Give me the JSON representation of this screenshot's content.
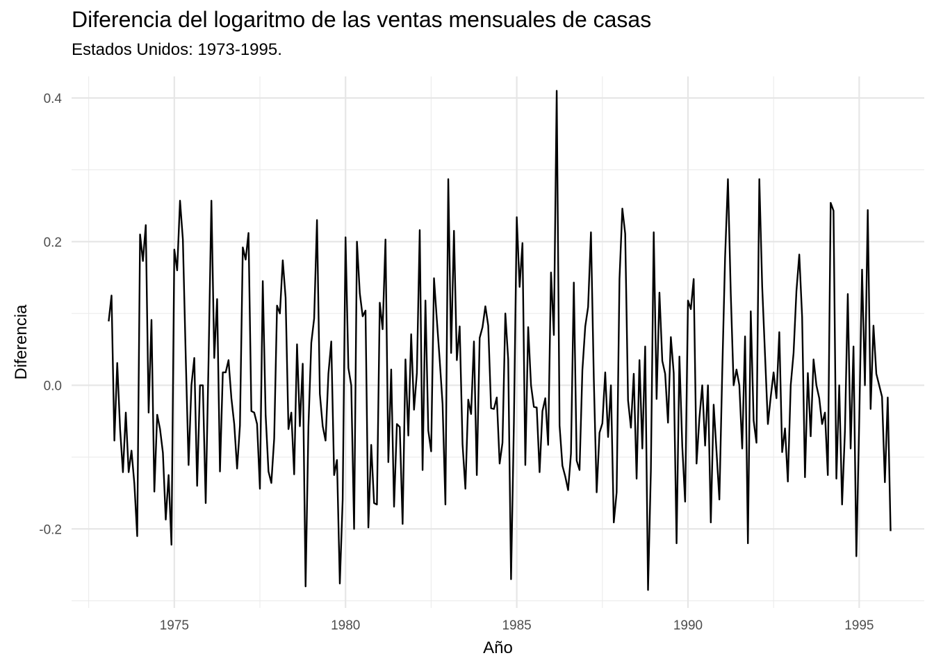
{
  "chart_data": {
    "type": "line",
    "title": "Diferencia del logaritmo de las ventas mensuales de casas",
    "subtitle": "Estados Unidos: 1973-1995.",
    "xlabel": "Año",
    "ylabel": "Diferencia",
    "xlim": [
      1972.0,
      1996.9
    ],
    "ylim": [
      -0.31,
      0.43
    ],
    "x_ticks": [
      1975,
      1980,
      1985,
      1990,
      1995
    ],
    "x_tick_labels": [
      "1975",
      "1980",
      "1985",
      "1990",
      "1995"
    ],
    "y_ticks": [
      -0.2,
      0.0,
      0.2,
      0.4
    ],
    "y_tick_labels": [
      "-0.2",
      "0.0",
      "0.2",
      "0.4"
    ],
    "grid": true,
    "line_color": "#000000",
    "x_start": "1973-02",
    "x_step": "1 month",
    "series": [
      {
        "values": [
          0.089,
          0.125,
          -0.077,
          0.031,
          -0.061,
          -0.121,
          -0.038,
          -0.121,
          -0.091,
          -0.137,
          -0.21,
          0.21,
          0.173,
          0.223,
          -0.038,
          0.091,
          -0.148,
          -0.041,
          -0.061,
          -0.094,
          -0.187,
          -0.125,
          -0.222,
          0.189,
          0.16,
          0.257,
          0.203,
          0.04,
          -0.111,
          0.0,
          0.038,
          -0.14,
          0.0,
          0.0,
          -0.164,
          0.035,
          0.257,
          0.038,
          0.12,
          -0.12,
          0.018,
          0.018,
          0.035,
          -0.018,
          -0.054,
          -0.116,
          -0.056,
          0.192,
          0.175,
          0.212,
          -0.036,
          -0.038,
          -0.054,
          -0.144,
          0.145,
          -0.041,
          -0.12,
          -0.136,
          -0.074,
          0.111,
          0.1,
          0.174,
          0.122,
          -0.061,
          -0.038,
          -0.124,
          0.057,
          -0.057,
          0.03,
          -0.28,
          -0.057,
          0.059,
          0.093,
          0.23,
          -0.012,
          -0.057,
          -0.077,
          0.016,
          0.061,
          -0.125,
          -0.104,
          -0.276,
          -0.159,
          0.206,
          0.024,
          0.0,
          -0.2,
          0.2,
          0.128,
          0.096,
          0.104,
          -0.198,
          -0.083,
          -0.164,
          -0.166,
          0.115,
          0.078,
          0.203,
          -0.107,
          0.022,
          -0.169,
          -0.054,
          -0.058,
          -0.193,
          0.036,
          -0.07,
          0.071,
          -0.034,
          0.017,
          0.216,
          -0.118,
          0.118,
          -0.063,
          -0.092,
          0.149,
          0.091,
          0.035,
          -0.026,
          -0.166,
          0.287,
          0.045,
          0.215,
          0.035,
          0.082,
          -0.082,
          -0.144,
          -0.02,
          -0.04,
          0.061,
          -0.125,
          0.066,
          0.081,
          0.11,
          0.083,
          -0.032,
          -0.033,
          -0.017,
          -0.109,
          -0.08,
          0.1,
          0.036,
          -0.27,
          -0.052,
          0.234,
          0.137,
          0.198,
          -0.111,
          0.081,
          0.0,
          -0.03,
          -0.031,
          -0.121,
          -0.036,
          -0.018,
          -0.083,
          0.157,
          0.07,
          0.41,
          -0.056,
          -0.112,
          -0.127,
          -0.146,
          -0.095,
          0.143,
          -0.105,
          -0.118,
          0.021,
          0.082,
          0.109,
          0.213,
          0.009,
          -0.149,
          -0.066,
          -0.053,
          0.018,
          -0.072,
          0.0,
          -0.191,
          -0.149,
          0.148,
          0.246,
          0.211,
          -0.021,
          -0.059,
          0.016,
          -0.13,
          0.035,
          -0.088,
          0.054,
          -0.285,
          -0.119,
          0.213,
          -0.019,
          0.129,
          0.034,
          0.016,
          -0.052,
          0.067,
          0.017,
          -0.22,
          0.04,
          -0.085,
          -0.162,
          0.118,
          0.106,
          0.148,
          -0.109,
          -0.046,
          0.0,
          -0.084,
          0.0,
          -0.191,
          -0.027,
          -0.092,
          -0.159,
          0.018,
          0.178,
          0.287,
          0.127,
          0.0,
          0.022,
          0.0,
          -0.088,
          0.068,
          -0.22,
          0.103,
          -0.049,
          -0.08,
          0.287,
          0.138,
          0.042,
          -0.054,
          -0.016,
          0.018,
          -0.018,
          0.074,
          -0.093,
          -0.06,
          -0.134,
          0.0,
          0.045,
          0.131,
          0.182,
          0.095,
          -0.128,
          0.017,
          -0.071,
          0.036,
          0.0,
          -0.018,
          -0.054,
          -0.038,
          -0.125,
          0.254,
          0.243,
          -0.13,
          0.0,
          -0.166,
          -0.064,
          0.127,
          -0.088,
          0.054,
          -0.238,
          -0.052,
          0.161,
          0.0,
          0.244,
          -0.033,
          0.083,
          0.016,
          0.0,
          -0.016,
          -0.135,
          -0.017,
          -0.203
        ]
      }
    ]
  }
}
